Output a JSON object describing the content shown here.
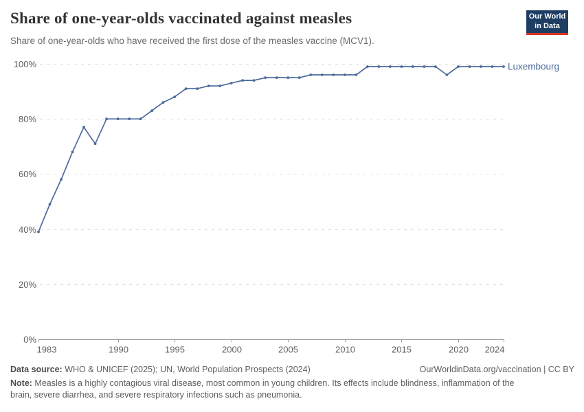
{
  "chart_data": {
    "type": "line",
    "title": "Share of one-year-olds vaccinated against measles",
    "subtitle": "Share of one-year-olds who have received the first dose of the measles vaccine (MCV1).",
    "xlabel": "",
    "ylabel": "",
    "ylim": [
      0,
      100
    ],
    "yticks": [
      0,
      20,
      40,
      60,
      80,
      100
    ],
    "ytick_suffix": "%",
    "xticks": [
      1983,
      1990,
      1995,
      2000,
      2005,
      2010,
      2015,
      2020,
      2024
    ],
    "grid": "horizontal-dashed",
    "legend_position": "end-of-line-label",
    "x": [
      1983,
      1984,
      1985,
      1986,
      1987,
      1988,
      1989,
      1990,
      1991,
      1992,
      1993,
      1994,
      1995,
      1996,
      1997,
      1998,
      1999,
      2000,
      2001,
      2002,
      2003,
      2004,
      2005,
      2006,
      2007,
      2008,
      2009,
      2010,
      2011,
      2012,
      2013,
      2014,
      2015,
      2016,
      2017,
      2018,
      2019,
      2020,
      2021,
      2022,
      2023,
      2024
    ],
    "series": [
      {
        "name": "Luxembourg",
        "color": "#4c6a9c",
        "values": [
          39,
          49,
          58,
          68,
          77,
          71,
          80,
          80,
          80,
          80,
          83,
          86,
          88,
          91,
          91,
          92,
          92,
          93,
          94,
          94,
          95,
          95,
          95,
          95,
          96,
          96,
          96,
          96,
          96,
          99,
          99,
          99,
          99,
          99,
          99,
          99,
          96,
          99,
          99,
          99,
          99,
          99
        ]
      }
    ]
  },
  "logo": {
    "line1": "Our World",
    "line2": "in Data",
    "bg_color": "#1d3d63",
    "accent_color": "#dc3424"
  },
  "footer": {
    "datasource_label": "Data source:",
    "datasource_text": " WHO & UNICEF (2025); UN, World Population Prospects (2024)",
    "rights_text": "OurWorldinData.org/vaccination | CC BY",
    "note_label": "Note:",
    "note_text": " Measles is a highly contagious viral disease, most common in young children. Its effects include blindness, inflammation of the brain, severe diarrhea, and severe respiratory infections such as pneumonia."
  },
  "colors": {
    "line": "#4c6a9c",
    "end_label": "#4c6a9c",
    "gridline": "#dedede",
    "axis": "#a1a1a1",
    "tick_label": "#5e5e5e",
    "title": "#333333",
    "subtitle": "#6b6b6b",
    "footer": "#5e5e5e"
  }
}
